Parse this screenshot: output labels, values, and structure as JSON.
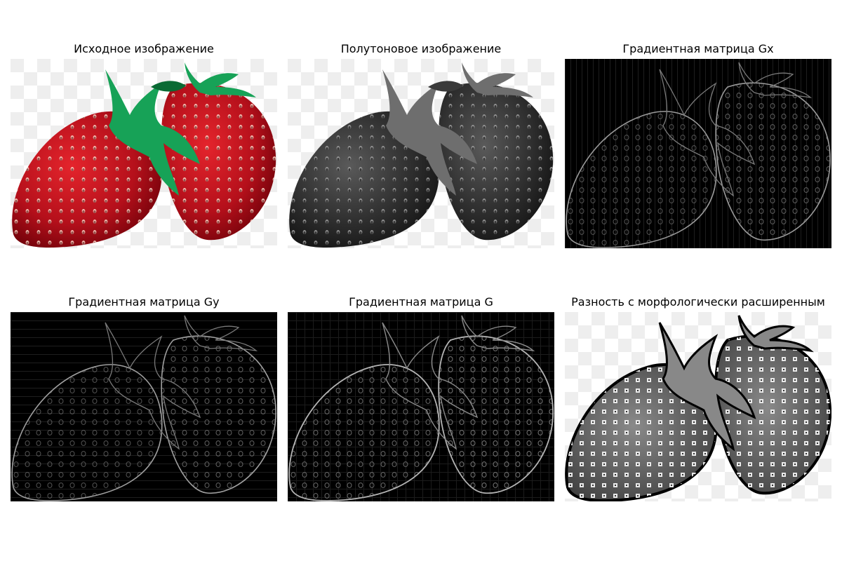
{
  "figure": {
    "panels": [
      {
        "title": "Исходное изображение",
        "kind": "original",
        "icon": "strawberry-photo"
      },
      {
        "title": "Полутоновое изображение",
        "kind": "grayscale",
        "icon": "strawberry-grayscale"
      },
      {
        "title": "Градиентная матрица Gx",
        "kind": "gx",
        "icon": "strawberry-gradient-x"
      },
      {
        "title": "Градиентная матрица Gy",
        "kind": "gy",
        "icon": "strawberry-gradient-y"
      },
      {
        "title": "Градиентная матрица G",
        "kind": "g",
        "icon": "strawberry-gradient-magnitude"
      },
      {
        "title": "Разность с морфологически расширенным",
        "kind": "dilate",
        "icon": "strawberry-morph-difference"
      }
    ]
  },
  "colors": {
    "berry": "#c0101c",
    "berry_dark": "#6a0008",
    "leaf": "#17a257",
    "leaf_dark": "#0a6a34",
    "checker_light": "#ffffff",
    "checker_dark": "#eeeeee",
    "gradient_background": "#000000"
  }
}
